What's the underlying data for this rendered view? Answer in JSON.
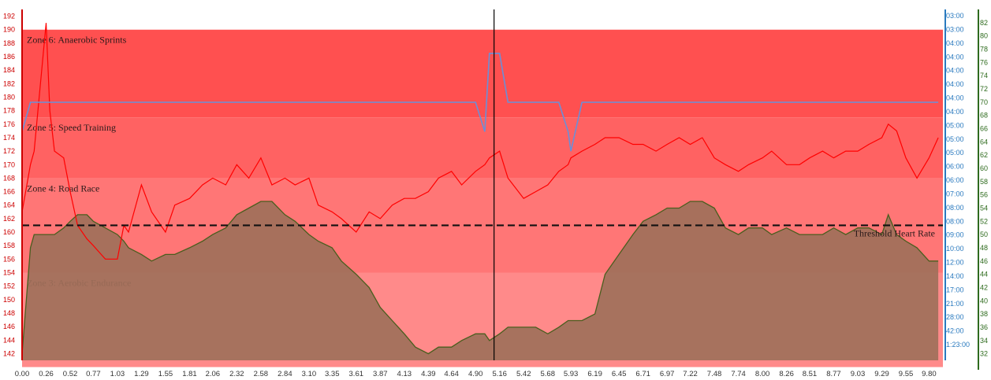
{
  "chart_data": {
    "type": "line",
    "x": [
      0.0,
      0.09,
      0.13,
      0.26,
      0.3,
      0.35,
      0.45,
      0.52,
      0.6,
      0.7,
      0.77,
      0.9,
      1.03,
      1.1,
      1.15,
      1.29,
      1.4,
      1.55,
      1.65,
      1.81,
      1.95,
      2.06,
      2.2,
      2.32,
      2.45,
      2.58,
      2.7,
      2.84,
      2.95,
      3.1,
      3.2,
      3.35,
      3.45,
      3.61,
      3.75,
      3.87,
      4.0,
      4.13,
      4.25,
      4.39,
      4.5,
      4.64,
      4.75,
      4.9,
      5.0,
      5.05,
      5.16,
      5.25,
      5.42,
      5.55,
      5.68,
      5.8,
      5.9,
      5.93,
      6.05,
      6.19,
      6.3,
      6.45,
      6.6,
      6.71,
      6.85,
      6.97,
      7.1,
      7.22,
      7.35,
      7.48,
      7.6,
      7.74,
      7.85,
      8.0,
      8.1,
      8.26,
      8.4,
      8.51,
      8.65,
      8.77,
      8.9,
      9.03,
      9.15,
      9.29,
      9.36,
      9.45,
      9.55,
      9.67,
      9.8,
      9.9
    ],
    "series": [
      {
        "axis": "heart-rate",
        "color": "#ff0000",
        "values": [
          163,
          170,
          172,
          191,
          178,
          172,
          171,
          166,
          161,
          159,
          158,
          156,
          156,
          161,
          160,
          167,
          163,
          160,
          164,
          165,
          167,
          168,
          167,
          170,
          168,
          171,
          167,
          168,
          167,
          168,
          164,
          163,
          162,
          160,
          163,
          162,
          164,
          165,
          165,
          166,
          168,
          169,
          167,
          169,
          170,
          171,
          172,
          168,
          165,
          166,
          167,
          169,
          170,
          171,
          172,
          173,
          174,
          174,
          173,
          173,
          172,
          173,
          174,
          173,
          174,
          171,
          170,
          169,
          170,
          171,
          172,
          170,
          170,
          171,
          172,
          171,
          172,
          172,
          173,
          174,
          176,
          175,
          171,
          168,
          171,
          174
        ]
      },
      {
        "axis": "pace",
        "color": "#6a8fd8",
        "values": [
          "05:00",
          "04:00",
          "04:00",
          "04:00",
          "04:00",
          "04:00",
          "04:00",
          "04:00",
          "04:00",
          "04:00",
          "04:00",
          "04:00",
          "04:00",
          "04:00",
          "04:00",
          "04:00",
          "04:00",
          "04:00",
          "04:00",
          "04:00",
          "04:00",
          "04:00",
          "04:00",
          "04:00",
          "04:00",
          "04:00",
          "04:00",
          "04:00",
          "04:00",
          "04:00",
          "04:00",
          "04:00",
          "04:00",
          "04:00",
          "04:00",
          "04:00",
          "04:00",
          "04:00",
          "04:00",
          "04:00",
          "04:00",
          "04:00",
          "04:00",
          "04:00",
          "05:00",
          "03:00",
          "03:00",
          "04:00",
          "04:00",
          "04:00",
          "04:00",
          "04:00",
          "05:00",
          "06:00",
          "04:00",
          "04:00",
          "04:00",
          "04:00",
          "04:00",
          "04:00",
          "04:00",
          "04:00",
          "04:00",
          "04:00",
          "04:00",
          "04:00",
          "04:00",
          "04:00",
          "04:00",
          "04:00",
          "04:00",
          "04:00",
          "04:00",
          "04:00",
          "04:00",
          "04:00",
          "04:00",
          "04:00",
          "04:00",
          "04:00",
          "04:00",
          "04:00",
          "04:00",
          "04:00",
          "04:00",
          "04:00"
        ]
      },
      {
        "axis": "elevation",
        "color": "#4a5e1e",
        "fill": "#a0705a",
        "values": [
          32,
          48,
          50,
          50,
          50,
          50,
          51,
          52,
          53,
          53,
          52,
          51,
          50,
          49,
          48,
          47,
          46,
          47,
          47,
          48,
          49,
          50,
          51,
          53,
          54,
          55,
          55,
          53,
          52,
          50,
          49,
          48,
          46,
          44,
          42,
          39,
          37,
          35,
          33,
          32,
          33,
          33,
          34,
          35,
          35,
          34,
          35,
          36,
          36,
          36,
          35,
          36,
          37,
          37,
          37,
          38,
          44,
          47,
          50,
          52,
          53,
          54,
          54,
          55,
          55,
          54,
          51,
          50,
          51,
          51,
          50,
          51,
          50,
          50,
          50,
          51,
          50,
          51,
          51,
          50,
          53,
          50,
          49,
          48,
          46,
          46
        ]
      }
    ],
    "zones": [
      {
        "label": "Zone 6: Anaerobic Sprints",
        "hr_min": 177,
        "hr_max": 190,
        "color": "#ff5050"
      },
      {
        "label": "Zone 5: Speed Training",
        "hr_min": 168,
        "hr_max": 177,
        "color": "#ff6262"
      },
      {
        "label": "Zone 4: Road Race",
        "hr_min": 154,
        "hr_max": 168,
        "color": "#ff7676"
      },
      {
        "label": "Zone 3: Aerobic Endurance",
        "hr_min": 140,
        "hr_max": 154,
        "color": "#ff8a8a"
      }
    ],
    "threshold": {
      "label": "Threshold Heart Rate",
      "value": 161
    },
    "marker_x": 5.1,
    "x_ticks": [
      "0.00",
      "0.26",
      "0.52",
      "0.77",
      "1.03",
      "1.29",
      "1.55",
      "1.81",
      "2.06",
      "2.32",
      "2.58",
      "2.84",
      "3.10",
      "3.35",
      "3.61",
      "3.87",
      "4.13",
      "4.39",
      "4.64",
      "4.90",
      "5.16",
      "5.42",
      "5.68",
      "5.93",
      "6.19",
      "6.45",
      "6.71",
      "6.97",
      "7.22",
      "7.48",
      "7.74",
      "8.00",
      "8.26",
      "8.51",
      "8.77",
      "9.03",
      "9.29",
      "9.55",
      "9.80"
    ],
    "xlim": [
      0,
      9.95
    ],
    "left_axis": {
      "ticks": [
        "192",
        "190",
        "188",
        "186",
        "184",
        "182",
        "180",
        "178",
        "176",
        "174",
        "172",
        "170",
        "168",
        "166",
        "164",
        "162",
        "160",
        "158",
        "156",
        "154",
        "152",
        "150",
        "148",
        "146",
        "144",
        "142"
      ],
      "ylim": [
        141,
        193
      ],
      "color": "#cc0000"
    },
    "pace_axis": {
      "ticks": [
        "03:00",
        "03:00",
        "04:00",
        "04:00",
        "04:00",
        "04:00",
        "04:00",
        "04:00",
        "05:00",
        "05:00",
        "05:00",
        "06:00",
        "06:00",
        "07:00",
        "08:00",
        "08:00",
        "09:00",
        "10:00",
        "12:00",
        "14:00",
        "17:00",
        "21:00",
        "28:00",
        "42:00",
        "1:23:00"
      ],
      "color": "#2a7abf"
    },
    "right_axis": {
      "ticks": [
        "82",
        "80",
        "78",
        "76",
        "74",
        "72",
        "70",
        "68",
        "66",
        "64",
        "62",
        "60",
        "58",
        "56",
        "54",
        "52",
        "50",
        "48",
        "46",
        "44",
        "42",
        "40",
        "38",
        "36",
        "34",
        "32"
      ],
      "ylim": [
        31,
        84
      ],
      "color": "#2e6b1e"
    },
    "header_text": "",
    "grid": false
  }
}
